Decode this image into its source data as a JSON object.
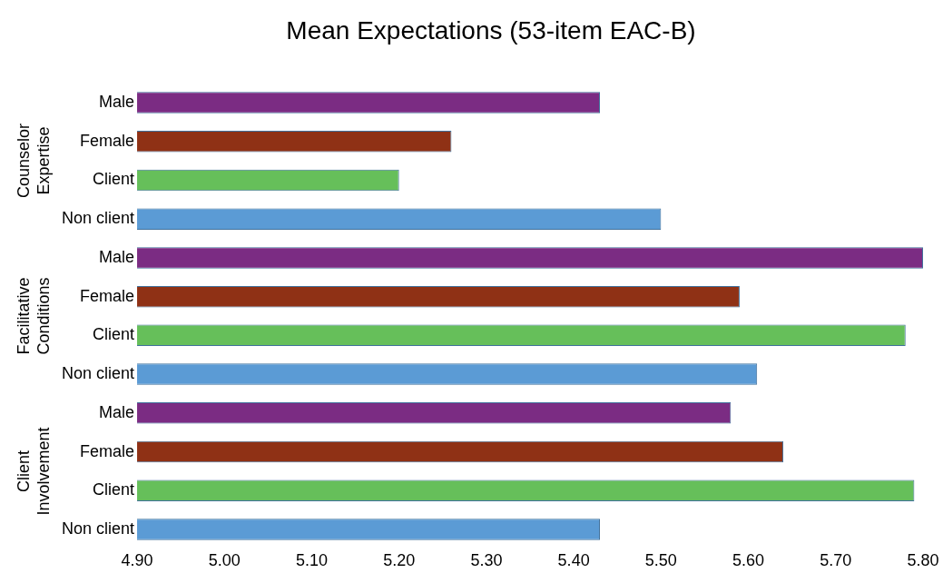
{
  "chart_data": {
    "type": "bar",
    "orientation": "horizontal",
    "title": "Mean Expectations (53-item EAC-B)",
    "categories": [
      "Male",
      "Female",
      "Client",
      "Non client",
      "Male",
      "Female",
      "Client",
      "Non client",
      "Male",
      "Female",
      "Client",
      "Non client"
    ],
    "values": [
      5.43,
      5.26,
      5.2,
      5.5,
      5.8,
      5.59,
      5.78,
      5.61,
      5.58,
      5.64,
      5.79,
      5.43
    ],
    "colors": [
      "#7b2c83",
      "#8f3115",
      "#66bf5a",
      "#5b9bd5",
      "#7b2c83",
      "#8f3115",
      "#66bf5a",
      "#5b9bd5",
      "#7b2c83",
      "#8f3115",
      "#66bf5a",
      "#5b9bd5"
    ],
    "annotations": [
      "Counselor Expertise",
      "Facilitative Conditions",
      "Client Involvement"
    ],
    "xlim": [
      4.9,
      5.8
    ],
    "xticks": [
      {
        "value": 4.9,
        "label": "4.90"
      },
      {
        "value": 5.0,
        "label": "5.00"
      },
      {
        "value": 5.1,
        "label": "5.10"
      },
      {
        "value": 5.2,
        "label": "5.20"
      },
      {
        "value": 5.3,
        "label": "5.30"
      },
      {
        "value": 5.4,
        "label": "5.40"
      },
      {
        "value": 5.5,
        "label": "5.50"
      },
      {
        "value": 5.6,
        "label": "5.60"
      },
      {
        "value": 5.7,
        "label": "5.70"
      },
      {
        "value": 5.8,
        "label": "5.80"
      }
    ],
    "grid": false,
    "legend": false
  }
}
